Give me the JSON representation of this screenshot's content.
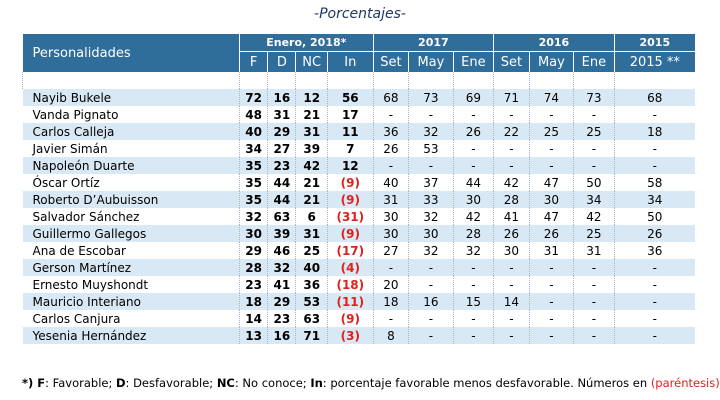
{
  "subtitle": "-Porcentajes-",
  "table": {
    "name_header": "Personalidades",
    "groups": [
      {
        "label": "Enero, 2018*",
        "span": 4
      },
      {
        "label": "2017",
        "span": 3
      },
      {
        "label": "2016",
        "span": 3
      },
      {
        "label": "2015",
        "span": 1
      }
    ],
    "columns": [
      "F",
      "D",
      "NC",
      "In",
      "Set",
      "May",
      "Ene",
      "Set",
      "May",
      "Ene",
      "2015 **"
    ],
    "rows": [
      [
        "Nayib Bukele",
        "72",
        "16",
        "12",
        "56",
        "68",
        "73",
        "69",
        "71",
        "74",
        "73",
        "68"
      ],
      [
        "Vanda Pignato",
        "48",
        "31",
        "21",
        "17",
        "-",
        "-",
        "-",
        "-",
        "-",
        "-",
        "-"
      ],
      [
        "Carlos Calleja",
        "40",
        "29",
        "31",
        "11",
        "36",
        "32",
        "26",
        "22",
        "25",
        "25",
        "18"
      ],
      [
        "Javier Simán",
        "34",
        "27",
        "39",
        "7",
        "26",
        "53",
        "-",
        "-",
        "-",
        "-",
        "-"
      ],
      [
        "Napoleón Duarte",
        "35",
        "23",
        "42",
        "12",
        "-",
        "-",
        "-",
        "-",
        "-",
        "-",
        "-"
      ],
      [
        "Óscar Ortíz",
        "35",
        "44",
        "21",
        "(9)",
        "40",
        "37",
        "44",
        "42",
        "47",
        "50",
        "58"
      ],
      [
        "Roberto D’Aubuisson",
        "35",
        "44",
        "21",
        "(9)",
        "31",
        "33",
        "30",
        "28",
        "30",
        "34",
        "34"
      ],
      [
        "Salvador Sánchez",
        "32",
        "63",
        "6",
        "(31)",
        "30",
        "32",
        "42",
        "41",
        "47",
        "42",
        "50"
      ],
      [
        "Guillermo Gallegos",
        "30",
        "39",
        "31",
        "(9)",
        "30",
        "30",
        "28",
        "26",
        "26",
        "25",
        "26"
      ],
      [
        "Ana de Escobar",
        "29",
        "46",
        "25",
        "(17)",
        "27",
        "32",
        "32",
        "30",
        "31",
        "31",
        "36"
      ],
      [
        "Gerson Martínez",
        "28",
        "32",
        "40",
        "(4)",
        "-",
        "-",
        "-",
        "-",
        "-",
        "-",
        "-"
      ],
      [
        "Ernesto Muyshondt",
        "23",
        "41",
        "36",
        "(18)",
        "20",
        "-",
        "-",
        "-",
        "-",
        "-",
        "-"
      ],
      [
        "Mauricio Interiano",
        "18",
        "29",
        "53",
        "(11)",
        "18",
        "16",
        "15",
        "14",
        "-",
        "-",
        "-"
      ],
      [
        "Carlos Canjura",
        "14",
        "23",
        "63",
        "(9)",
        "-",
        "-",
        "-",
        "-",
        "-",
        "-",
        "-"
      ],
      [
        "Yesenia Hernández",
        "13",
        "16",
        "71",
        "(3)",
        "8",
        "-",
        "-",
        "-",
        "-",
        "-",
        "-"
      ]
    ]
  },
  "footnote": [
    {
      "text": "*) ",
      "bold": true
    },
    {
      "text": "F",
      "bold": true
    },
    {
      "text": ": Favorable; "
    },
    {
      "text": "D",
      "bold": true
    },
    {
      "text": ": Desfavorable; "
    },
    {
      "text": "NC",
      "bold": true
    },
    {
      "text": ": No conoce; "
    },
    {
      "text": "In",
      "bold": true
    },
    {
      "text": ": porcentaje favorable menos desfavorable. Números en "
    },
    {
      "text": "(paréntesis)",
      "red": true
    }
  ]
}
